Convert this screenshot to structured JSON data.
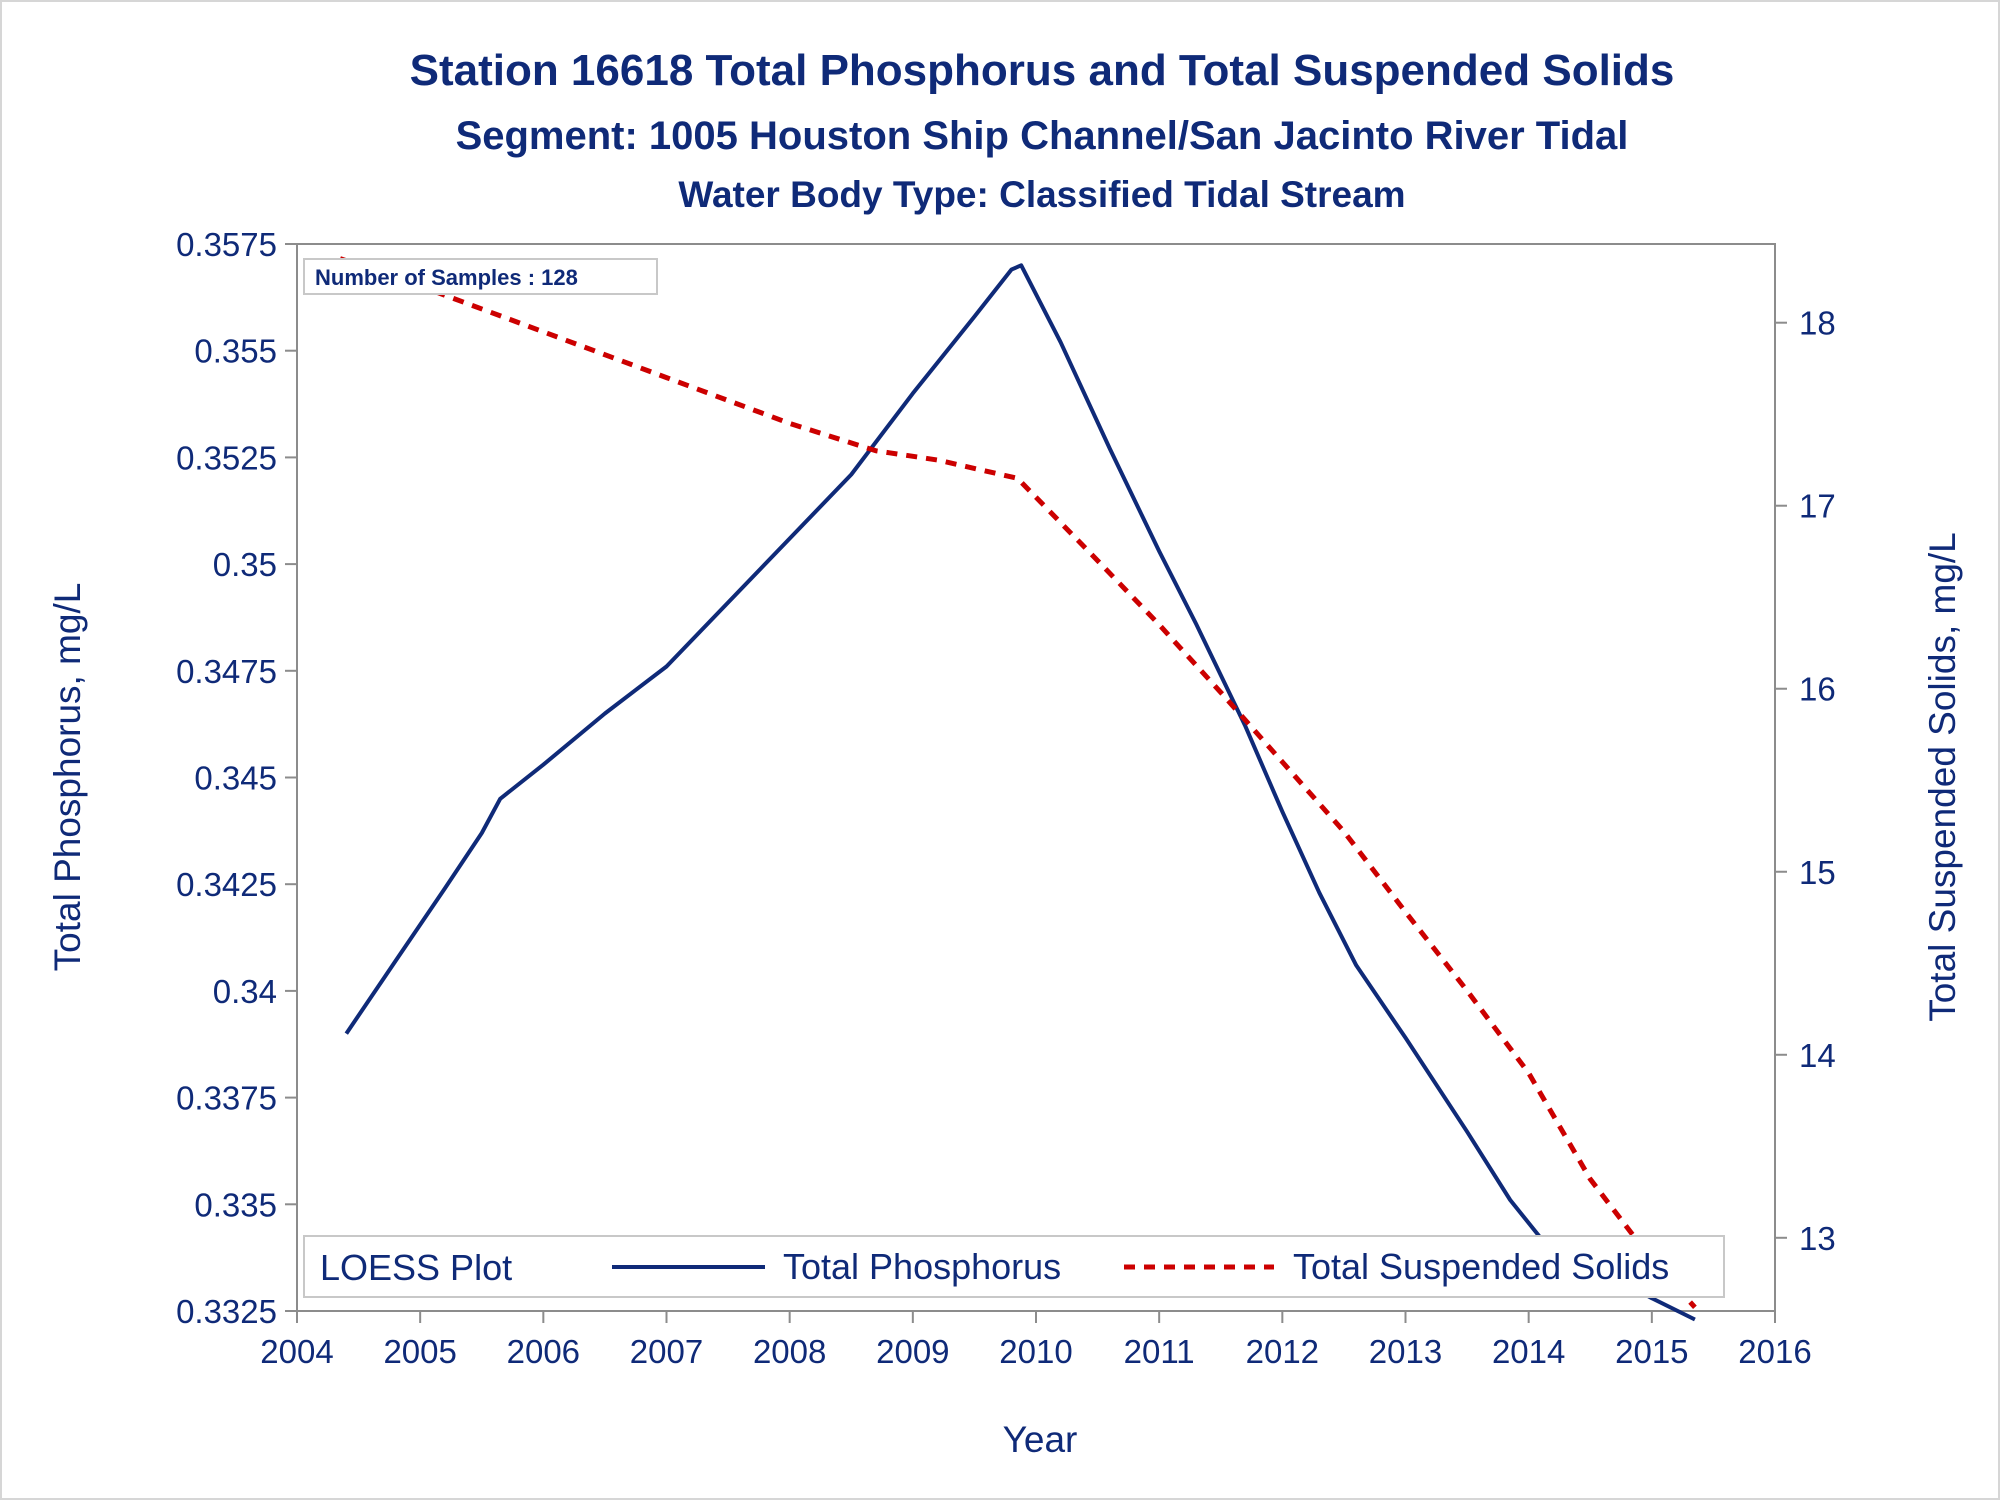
{
  "titles": {
    "line1": "Station 16618  Total Phosphorus and Total Suspended Solids",
    "line2": "Segment: 1005  Houston Ship Channel/San Jacinto River Tidal",
    "line3": "Water Body Type: Classified Tidal Stream"
  },
  "inset_label": "Number of Samples : 128",
  "legend": {
    "title": "LOESS Plot",
    "items": [
      "Total Phosphorus",
      "Total Suspended Solids"
    ]
  },
  "colors": {
    "phosphorus": "#0f2a78",
    "tss": "#cc0000",
    "text": "#0f2a78",
    "axis": "#8c8c8c"
  },
  "chart_data": {
    "type": "line",
    "xlabel": "Year",
    "ylabel": "Total Phosphorus, mg/L",
    "y2label": "Total Suspended Solids, mg/L",
    "xlim": [
      2004,
      2016
    ],
    "ylim": [
      0.3325,
      0.3575
    ],
    "y2lim": [
      12.6,
      18.43
    ],
    "x_ticks": [
      "2004",
      "2005",
      "2006",
      "2007",
      "2008",
      "2009",
      "2010",
      "2011",
      "2012",
      "2013",
      "2014",
      "2015",
      "2016"
    ],
    "y_ticks": [
      "0.3325",
      "0.335",
      "0.3375",
      "0.34",
      "0.3425",
      "0.345",
      "0.3475",
      "0.35",
      "0.3525",
      "0.355",
      "0.3575"
    ],
    "y2_ticks": [
      "13",
      "14",
      "15",
      "16",
      "17",
      "18"
    ],
    "series": [
      {
        "name": "Total Phosphorus",
        "axis": "left",
        "style": "solid",
        "x": [
          2004.4,
          2004.8,
          2005.2,
          2005.5,
          2005.65,
          2006.0,
          2006.5,
          2007.0,
          2007.5,
          2008.0,
          2008.5,
          2009.0,
          2009.5,
          2009.8,
          2009.88,
          2010.2,
          2010.6,
          2011.0,
          2011.3,
          2011.7,
          2012.0,
          2012.3,
          2012.6,
          2013.0,
          2013.5,
          2013.85,
          2014.1,
          2014.5,
          2015.0,
          2015.35
        ],
        "values": [
          0.339,
          0.3407,
          0.3424,
          0.3437,
          0.3445,
          0.3453,
          0.3465,
          0.3476,
          0.3491,
          0.3506,
          0.3521,
          0.354,
          0.3558,
          0.3569,
          0.357,
          0.3552,
          0.3527,
          0.3503,
          0.3486,
          0.3462,
          0.3442,
          0.3423,
          0.3406,
          0.3389,
          0.3367,
          0.3351,
          0.3342,
          0.3336,
          0.3328,
          0.3323
        ]
      },
      {
        "name": "Total Suspended Solids",
        "axis": "right",
        "style": "dashed",
        "x": [
          2004.35,
          2005.0,
          2006.0,
          2007.0,
          2008.0,
          2008.7,
          2009.2,
          2009.85,
          2010.5,
          2011.0,
          2011.5,
          2012.0,
          2012.5,
          2013.0,
          2013.5,
          2014.0,
          2014.5,
          2015.0,
          2015.35
        ],
        "values": [
          18.35,
          18.2,
          17.95,
          17.7,
          17.45,
          17.3,
          17.25,
          17.15,
          16.7,
          16.35,
          15.98,
          15.6,
          15.22,
          14.78,
          14.35,
          13.9,
          13.32,
          12.88,
          12.62
        ]
      }
    ]
  }
}
